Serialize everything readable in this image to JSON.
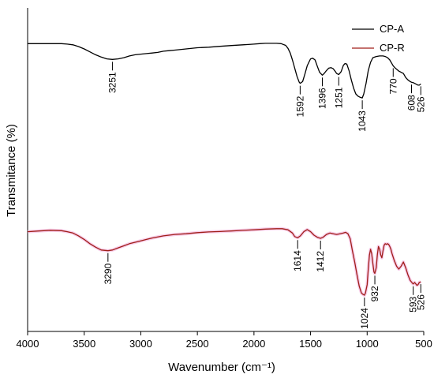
{
  "chart_data": {
    "type": "line",
    "title": "",
    "xlabel": "Wavenumber (cm⁻¹)",
    "ylabel": "Transmitance (%)",
    "xlim": [
      4000,
      500
    ],
    "x_reversed": true,
    "ylim": [
      0,
      100
    ],
    "y_tick_labels_shown": false,
    "x_ticks": [
      4000,
      3500,
      3000,
      2500,
      2000,
      1500,
      1000,
      500
    ],
    "grid": false,
    "legend": {
      "placement": "top-right"
    },
    "series": [
      {
        "name": "CP-A",
        "color": "#000000",
        "x": [
          4000,
          3800,
          3700,
          3650,
          3600,
          3550,
          3500,
          3450,
          3400,
          3350,
          3300,
          3251,
          3200,
          3150,
          3100,
          3050,
          3000,
          2950,
          2900,
          2850,
          2800,
          2750,
          2700,
          2600,
          2500,
          2400,
          2300,
          2200,
          2100,
          2050,
          2000,
          1950,
          1900,
          1850,
          1800,
          1760,
          1720,
          1700,
          1680,
          1660,
          1640,
          1620,
          1600,
          1592,
          1570,
          1550,
          1530,
          1510,
          1500,
          1480,
          1460,
          1440,
          1420,
          1396,
          1380,
          1360,
          1340,
          1320,
          1300,
          1280,
          1270,
          1251,
          1230,
          1210,
          1195,
          1180,
          1160,
          1140,
          1120,
          1100,
          1080,
          1060,
          1043,
          1030,
          1010,
          990,
          970,
          950,
          920,
          890,
          860,
          840,
          820,
          800,
          785,
          770,
          750,
          720,
          700,
          680,
          660,
          640,
          620,
          608,
          590,
          570,
          550,
          540,
          526
        ],
        "y": [
          91,
          91,
          91,
          90.6,
          90,
          88.5,
          86.5,
          84,
          81.5,
          79.5,
          78,
          77.5,
          78,
          79,
          80.5,
          81.5,
          82,
          82.5,
          83,
          83.5,
          84.5,
          85,
          85.5,
          86.5,
          87.5,
          88,
          88.7,
          89.4,
          90,
          90.3,
          90.6,
          91,
          91.3,
          91.3,
          91.3,
          91,
          89.5,
          87,
          83,
          77,
          70,
          63,
          58,
          57,
          58.5,
          65,
          72,
          76,
          78,
          78.5,
          77,
          71.5,
          66.5,
          64,
          65.5,
          68,
          70,
          70.5,
          69.5,
          67,
          65.5,
          64.5,
          67,
          72.5,
          74,
          73.5,
          68,
          60,
          53,
          48,
          46,
          45,
          44.5,
          48,
          57,
          68,
          75,
          79,
          80,
          80.5,
          80.5,
          80,
          79,
          77,
          74.5,
          72,
          70,
          67.5,
          66.5,
          65.5,
          62,
          60,
          58.5,
          58,
          57.5,
          56.5,
          55.5,
          55.5,
          56.5
        ]
      },
      {
        "name": "CP-R",
        "color": "#a01e19",
        "x": [
          4000,
          3900,
          3800,
          3700,
          3650,
          3600,
          3550,
          3500,
          3450,
          3400,
          3350,
          3290,
          3250,
          3200,
          3150,
          3100,
          3050,
          3000,
          2950,
          2900,
          2800,
          2700,
          2600,
          2500,
          2400,
          2300,
          2250,
          2200,
          2100,
          2000,
          1900,
          1800,
          1750,
          1700,
          1660,
          1640,
          1614,
          1590,
          1560,
          1530,
          1500,
          1470,
          1440,
          1412,
          1390,
          1360,
          1330,
          1300,
          1270,
          1240,
          1210,
          1190,
          1170,
          1150,
          1130,
          1110,
          1090,
          1070,
          1050,
          1035,
          1024,
          1015,
          1000,
          990,
          980,
          970,
          960,
          950,
          940,
          932,
          920,
          910,
          900,
          890,
          880,
          870,
          860,
          850,
          840,
          830,
          820,
          810,
          800,
          790,
          780,
          760,
          740,
          720,
          700,
          680,
          660,
          640,
          620,
          600,
          593,
          580,
          570,
          560,
          550,
          540,
          526
        ],
        "y": [
          45.5,
          46,
          46.5,
          46.2,
          45.5,
          44.5,
          42.5,
          40,
          37,
          34.5,
          32.5,
          32,
          32.5,
          34,
          35.5,
          37,
          38,
          39,
          40,
          41,
          42.5,
          43.5,
          44,
          44.8,
          45.3,
          45.6,
          45.8,
          46,
          46.4,
          46.8,
          47.3,
          47.6,
          47.6,
          46.8,
          44.5,
          42,
          41.2,
          42.5,
          45.5,
          47,
          45.5,
          43,
          41.5,
          40.8,
          41.5,
          43.5,
          44.5,
          44,
          43.5,
          44,
          44.5,
          45,
          44,
          40.5,
          32,
          24,
          15,
          7,
          2,
          1,
          0.5,
          2,
          8,
          19,
          29,
          33,
          30,
          23,
          17,
          16,
          20,
          29,
          35,
          33,
          29,
          27,
          32,
          36,
          37,
          36.5,
          37,
          36.5,
          35,
          33,
          30,
          25,
          21,
          19,
          21,
          24,
          20,
          15,
          11,
          9,
          8.5,
          9.5,
          8.5,
          7.5,
          8,
          9.5,
          10
        ]
      }
    ],
    "annotations": [
      {
        "label": "3251",
        "series": "CP-A",
        "x": 3251
      },
      {
        "label": "1592",
        "series": "CP-A",
        "x": 1592
      },
      {
        "label": "1396",
        "series": "CP-A",
        "x": 1396
      },
      {
        "label": "1251",
        "series": "CP-A",
        "x": 1251
      },
      {
        "label": "770",
        "series": "CP-A",
        "x": 770
      },
      {
        "label": "1043",
        "series": "CP-A",
        "x": 1043
      },
      {
        "label": "608",
        "series": "CP-A",
        "x": 608
      },
      {
        "label": "526",
        "series": "CP-A",
        "x": 526
      },
      {
        "label": "3290",
        "series": "CP-R",
        "x": 3290
      },
      {
        "label": "1614",
        "series": "CP-R",
        "x": 1614
      },
      {
        "label": "1412",
        "series": "CP-R",
        "x": 1412
      },
      {
        "label": "932",
        "series": "CP-R",
        "x": 932
      },
      {
        "label": "1024",
        "series": "CP-R",
        "x": 1024
      },
      {
        "label": "593",
        "series": "CP-R",
        "x": 593
      },
      {
        "label": "526",
        "series": "CP-R",
        "x": 526
      }
    ]
  }
}
